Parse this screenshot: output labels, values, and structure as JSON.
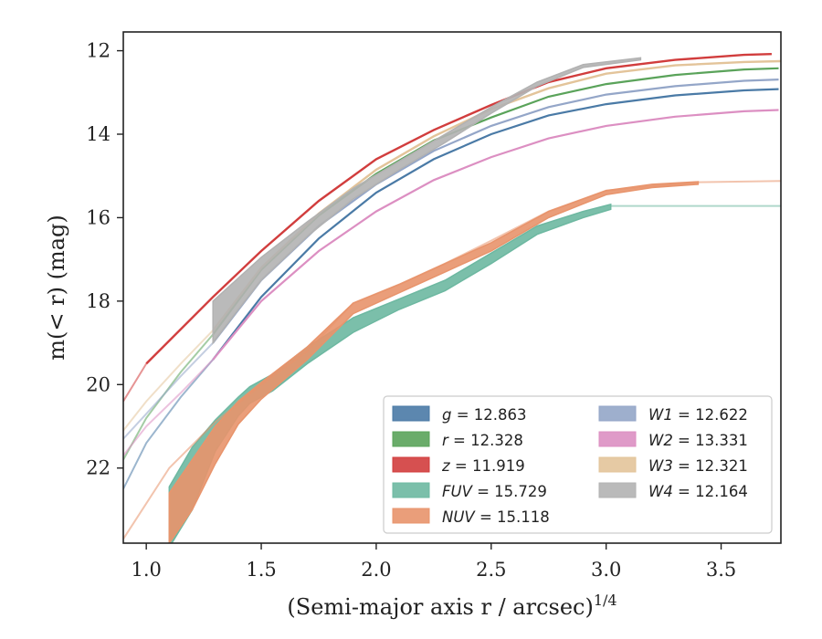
{
  "chart_data": {
    "type": "line",
    "title": "",
    "xlabel": "(Semi-major axis r / arcsec)",
    "xlabel_sup": "1/4",
    "ylabel": "m(< r) (mag)",
    "xlim": [
      0.9,
      3.76
    ],
    "ylim": [
      23.8,
      11.55
    ],
    "y_inverted": true,
    "grid": false,
    "legend_position": "lower-right",
    "x_ticks": [
      1.0,
      1.5,
      2.0,
      2.5,
      3.0,
      3.5
    ],
    "x_tick_labels": [
      "1.0",
      "1.5",
      "2.0",
      "2.5",
      "3.0",
      "3.5"
    ],
    "y_ticks": [
      12,
      14,
      16,
      18,
      20,
      22
    ],
    "y_tick_labels": [
      "12",
      "14",
      "16",
      "18",
      "20",
      "22"
    ],
    "series": [
      {
        "name": "g = 12.863",
        "label_var": "g",
        "label_val": "12.863",
        "color": "#4a7aa6",
        "solid": [
          [
            1.29,
            19.4
          ],
          [
            1.5,
            17.9
          ],
          [
            1.75,
            16.5
          ],
          [
            2.0,
            15.4
          ],
          [
            2.25,
            14.6
          ],
          [
            2.5,
            14.0
          ],
          [
            2.75,
            13.55
          ],
          [
            3.0,
            13.28
          ],
          [
            3.3,
            13.07
          ],
          [
            3.6,
            12.95
          ],
          [
            3.75,
            12.92
          ]
        ],
        "faint": [
          [
            0.9,
            22.5
          ],
          [
            1.0,
            21.4
          ],
          [
            1.15,
            20.3
          ],
          [
            1.29,
            19.4
          ]
        ],
        "width": 2.2
      },
      {
        "name": "r = 12.328",
        "label_var": "r",
        "label_val": "12.328",
        "color": "#5aa35a",
        "solid": [
          [
            1.29,
            18.8
          ],
          [
            1.5,
            17.25
          ],
          [
            1.75,
            15.95
          ],
          [
            2.0,
            14.95
          ],
          [
            2.25,
            14.15
          ],
          [
            2.5,
            13.6
          ],
          [
            2.75,
            13.1
          ],
          [
            3.0,
            12.8
          ],
          [
            3.3,
            12.58
          ],
          [
            3.6,
            12.45
          ],
          [
            3.75,
            12.42
          ]
        ],
        "faint": [
          [
            0.9,
            21.8
          ],
          [
            1.0,
            20.8
          ],
          [
            1.15,
            19.7
          ],
          [
            1.29,
            18.8
          ]
        ],
        "width": 2.2
      },
      {
        "name": "z = 11.919",
        "label_var": "z",
        "label_val": "11.919",
        "color": "#d13d3d",
        "solid": [
          [
            1.0,
            19.5
          ],
          [
            1.29,
            17.9
          ],
          [
            1.5,
            16.8
          ],
          [
            1.75,
            15.6
          ],
          [
            2.0,
            14.6
          ],
          [
            2.25,
            13.9
          ],
          [
            2.5,
            13.3
          ],
          [
            2.75,
            12.75
          ],
          [
            3.0,
            12.42
          ],
          [
            3.3,
            12.22
          ],
          [
            3.6,
            12.1
          ],
          [
            3.72,
            12.08
          ]
        ],
        "faint": [
          [
            0.9,
            20.4
          ],
          [
            1.0,
            19.5
          ]
        ],
        "width": 2.4
      },
      {
        "name": "FUV = 15.729",
        "label_var": "FUV",
        "label_val": "15.729",
        "color": "#6db8a1",
        "band": [
          [
            1.1,
            22.45,
            23.9
          ],
          [
            1.2,
            21.5,
            23.0
          ],
          [
            1.3,
            20.85,
            21.6
          ],
          [
            1.4,
            20.3,
            20.75
          ],
          [
            1.45,
            20.05,
            20.45
          ],
          [
            1.55,
            19.75,
            20.15
          ],
          [
            1.7,
            19.1,
            19.5
          ],
          [
            1.9,
            18.4,
            18.75
          ],
          [
            2.1,
            17.95,
            18.2
          ],
          [
            2.3,
            17.5,
            17.75
          ],
          [
            2.5,
            16.85,
            17.1
          ],
          [
            2.7,
            16.2,
            16.4
          ],
          [
            2.9,
            15.85,
            16.0
          ],
          [
            3.02,
            15.68,
            15.8
          ]
        ],
        "faint": [
          [
            3.02,
            15.72
          ],
          [
            3.76,
            15.72
          ]
        ],
        "width": 2.0
      },
      {
        "name": "NUV = 15.118",
        "label_var": "NUV",
        "label_val": "15.118",
        "color": "#e8946c",
        "band": [
          [
            1.1,
            22.6,
            23.8
          ],
          [
            1.2,
            21.8,
            23.0
          ],
          [
            1.3,
            21.0,
            21.9
          ],
          [
            1.4,
            20.4,
            20.95
          ],
          [
            1.5,
            19.95,
            20.35
          ],
          [
            1.7,
            19.1,
            19.4
          ],
          [
            1.9,
            18.05,
            18.3
          ],
          [
            2.1,
            17.6,
            17.8
          ],
          [
            2.3,
            17.1,
            17.3
          ],
          [
            2.5,
            16.6,
            16.8
          ],
          [
            2.75,
            15.85,
            16.0
          ],
          [
            3.0,
            15.35,
            15.45
          ],
          [
            3.2,
            15.2,
            15.28
          ],
          [
            3.4,
            15.14,
            15.2
          ]
        ],
        "faint": [
          [
            0.9,
            23.7
          ],
          [
            1.1,
            22.0
          ],
          [
            1.3,
            20.9
          ],
          [
            1.5,
            20.0
          ],
          [
            1.7,
            19.2
          ],
          [
            1.9,
            18.05
          ],
          [
            2.1,
            17.6
          ],
          [
            2.3,
            17.1
          ],
          [
            2.5,
            16.55
          ],
          [
            2.75,
            15.85
          ],
          [
            3.0,
            15.35
          ],
          [
            3.4,
            15.15
          ],
          [
            3.76,
            15.12
          ]
        ],
        "width": 2.2
      },
      {
        "name": "W1 = 12.622",
        "label_var": "W1",
        "label_val": "12.622",
        "color": "#94a6c8",
        "solid": [
          [
            1.29,
            19.0
          ],
          [
            1.5,
            17.5
          ],
          [
            1.75,
            16.2
          ],
          [
            2.0,
            15.2
          ],
          [
            2.25,
            14.4
          ],
          [
            2.5,
            13.8
          ],
          [
            2.75,
            13.35
          ],
          [
            3.0,
            13.05
          ],
          [
            3.3,
            12.85
          ],
          [
            3.6,
            12.72
          ],
          [
            3.75,
            12.69
          ]
        ],
        "faint": [
          [
            0.9,
            21.3
          ],
          [
            1.0,
            20.7
          ],
          [
            1.15,
            19.8
          ],
          [
            1.29,
            19.0
          ]
        ],
        "width": 2.2
      },
      {
        "name": "W2 = 13.331",
        "label_var": "W2",
        "label_val": "13.331",
        "color": "#dc8fc2",
        "solid": [
          [
            1.29,
            19.4
          ],
          [
            1.5,
            18.0
          ],
          [
            1.75,
            16.8
          ],
          [
            2.0,
            15.85
          ],
          [
            2.25,
            15.1
          ],
          [
            2.5,
            14.55
          ],
          [
            2.75,
            14.1
          ],
          [
            3.0,
            13.8
          ],
          [
            3.3,
            13.58
          ],
          [
            3.6,
            13.45
          ],
          [
            3.75,
            13.42
          ]
        ],
        "faint": [
          [
            0.9,
            21.7
          ],
          [
            1.0,
            21.0
          ],
          [
            1.15,
            20.2
          ],
          [
            1.29,
            19.4
          ]
        ],
        "width": 2.2
      },
      {
        "name": "W3 = 12.321",
        "label_var": "W3",
        "label_val": "12.321",
        "color": "#e3c49a",
        "solid": [
          [
            1.29,
            18.7
          ],
          [
            1.5,
            17.2
          ],
          [
            1.75,
            15.9
          ],
          [
            2.0,
            14.85
          ],
          [
            2.25,
            14.05
          ],
          [
            2.5,
            13.4
          ],
          [
            2.75,
            12.9
          ],
          [
            3.0,
            12.55
          ],
          [
            3.3,
            12.35
          ],
          [
            3.6,
            12.27
          ],
          [
            3.76,
            12.25
          ]
        ],
        "faint": [
          [
            0.9,
            21.1
          ],
          [
            1.0,
            20.4
          ],
          [
            1.15,
            19.5
          ],
          [
            1.29,
            18.7
          ]
        ],
        "width": 2.4
      },
      {
        "name": "W4 = 12.164",
        "label_var": "W4",
        "label_val": "12.164",
        "color": "#b2b2b2",
        "band": [
          [
            1.29,
            18.0,
            19.0
          ],
          [
            1.4,
            17.45,
            18.2
          ],
          [
            1.5,
            16.95,
            17.5
          ],
          [
            1.7,
            16.1,
            16.45
          ],
          [
            1.9,
            15.3,
            15.55
          ],
          [
            2.1,
            14.65,
            14.85
          ],
          [
            2.3,
            14.0,
            14.2
          ],
          [
            2.5,
            13.35,
            13.5
          ],
          [
            2.7,
            12.75,
            12.85
          ],
          [
            2.9,
            12.33,
            12.4
          ],
          [
            3.15,
            12.17,
            12.22
          ]
        ],
        "width": 2.0
      }
    ]
  }
}
